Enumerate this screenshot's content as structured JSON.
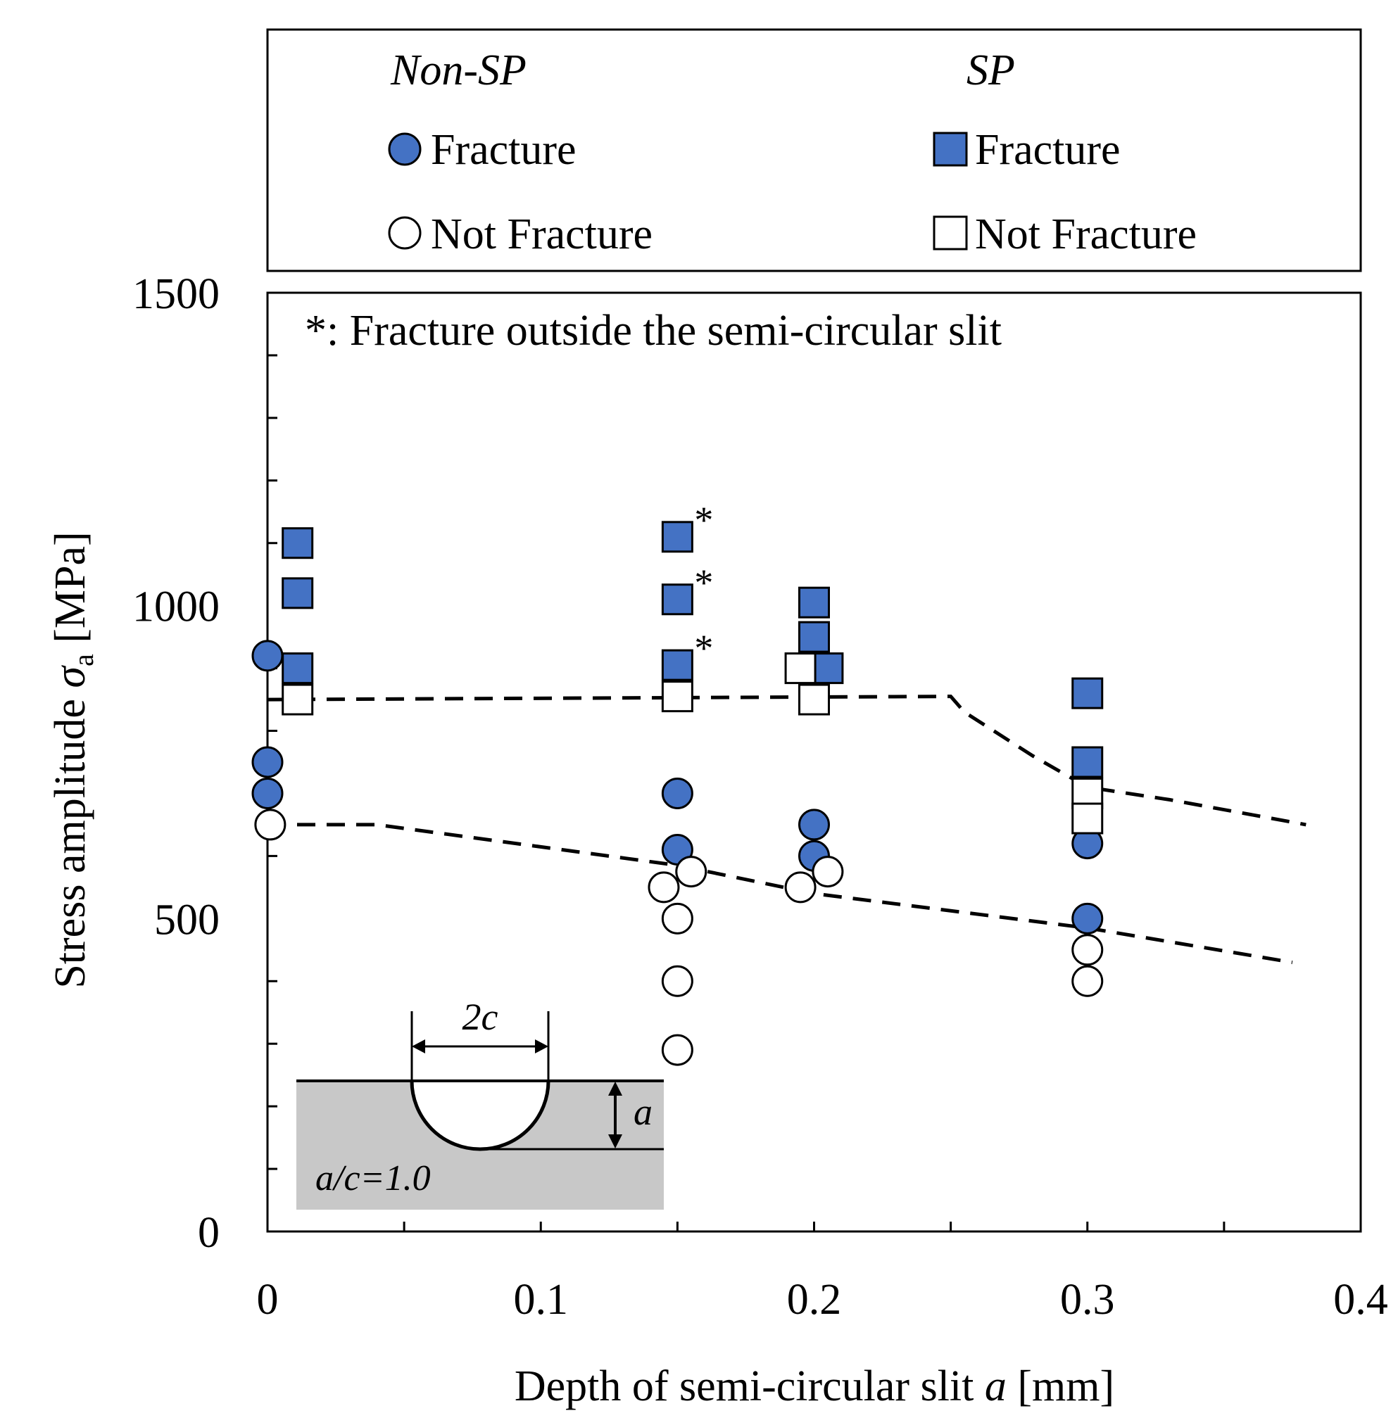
{
  "colors": {
    "fill": "#4472c4",
    "edge": "#000000",
    "inset": "#c8c8c8",
    "open": "#ffffff"
  },
  "legend": {
    "groups": [
      {
        "title": "Non-SP",
        "marker": "circle",
        "items": [
          {
            "label": "Fracture",
            "filled": true
          },
          {
            "label": "Not Fracture",
            "filled": false
          }
        ]
      },
      {
        "title": "SP",
        "marker": "square",
        "items": [
          {
            "label": "Fracture",
            "filled": true
          },
          {
            "label": "Not Fracture",
            "filled": false
          }
        ]
      }
    ]
  },
  "chart_data": {
    "type": "scatter",
    "annotation": "*: Fracture outside the semi-circular slit",
    "ylabel": {
      "main": "Stress amplitude ",
      "symbol": "σ",
      "sub": "a",
      "unit": " [MPa]"
    },
    "xlabel": {
      "main": "Depth of semi-circular slit ",
      "symbol": "a",
      "unit": " [mm]"
    },
    "xlim": [
      0,
      0.4
    ],
    "ylim": [
      0,
      1500
    ],
    "xticks": [
      {
        "v": 0,
        "label": "0"
      },
      {
        "v": 0.1,
        "label": "0.1"
      },
      {
        "v": 0.2,
        "label": "0.2"
      },
      {
        "v": 0.3,
        "label": "0.3"
      },
      {
        "v": 0.4,
        "label": "0.4"
      }
    ],
    "yticks": [
      {
        "v": 0,
        "label": "0"
      },
      {
        "v": 500,
        "label": "500"
      },
      {
        "v": 1000,
        "label": "1000"
      },
      {
        "v": 1500,
        "label": "1500"
      }
    ],
    "xminor_ticks": [
      0.05,
      0.1,
      0.15,
      0.2,
      0.25,
      0.3,
      0.35
    ],
    "yminor_ticks": [
      100,
      200,
      300,
      400,
      600,
      700,
      800,
      900,
      1100,
      1200,
      1300,
      1400
    ],
    "series": [
      {
        "name": "Non-SP Fracture",
        "marker": "circle",
        "filled": true,
        "points": [
          [
            0,
            920
          ],
          [
            0,
            750
          ],
          [
            0,
            700
          ],
          [
            0.15,
            700
          ],
          [
            0.15,
            610
          ],
          [
            0.2,
            650
          ],
          [
            0.2,
            600
          ],
          [
            0.3,
            620
          ],
          [
            0.3,
            500
          ]
        ]
      },
      {
        "name": "Non-SP Not Fracture",
        "marker": "circle",
        "filled": false,
        "points": [
          [
            0.001,
            650
          ],
          [
            0.145,
            550
          ],
          [
            0.155,
            575
          ],
          [
            0.15,
            500
          ],
          [
            0.15,
            400
          ],
          [
            0.15,
            290
          ],
          [
            0.195,
            550
          ],
          [
            0.205,
            575
          ],
          [
            0.3,
            450
          ],
          [
            0.3,
            400
          ]
        ]
      },
      {
        "name": "SP Fracture",
        "marker": "square",
        "filled": true,
        "points": [
          [
            0.011,
            1100
          ],
          [
            0.011,
            1020
          ],
          [
            0.011,
            900
          ],
          [
            0.15,
            1110,
            "*"
          ],
          [
            0.15,
            1010,
            "*"
          ],
          [
            0.15,
            905,
            "*"
          ],
          [
            0.2,
            1005
          ],
          [
            0.2,
            950
          ],
          [
            0.205,
            900
          ],
          [
            0.3,
            860
          ],
          [
            0.3,
            750
          ]
        ]
      },
      {
        "name": "SP Not Fracture",
        "marker": "square",
        "filled": false,
        "points": [
          [
            0.011,
            850
          ],
          [
            0.15,
            855
          ],
          [
            0.195,
            900
          ],
          [
            0.2,
            850
          ],
          [
            0.3,
            700
          ],
          [
            0.3,
            660
          ]
        ]
      }
    ],
    "lines": [
      {
        "name": "SP limit",
        "style": "dashed",
        "points": [
          [
            0,
            850
          ],
          [
            0.25,
            855
          ],
          [
            0.255,
            830
          ],
          [
            0.28,
            760
          ],
          [
            0.3,
            710
          ],
          [
            0.33,
            690
          ],
          [
            0.38,
            650
          ]
        ]
      },
      {
        "name": "Non-SP limit",
        "style": "dashed",
        "points": [
          [
            0,
            650
          ],
          [
            0.04,
            650
          ],
          [
            0.15,
            585
          ],
          [
            0.2,
            540
          ],
          [
            0.3,
            485
          ],
          [
            0.375,
            430
          ]
        ]
      }
    ],
    "inset": {
      "width_label": "2c",
      "depth_label": "a",
      "ratio_label": "a/c=1.0"
    }
  }
}
